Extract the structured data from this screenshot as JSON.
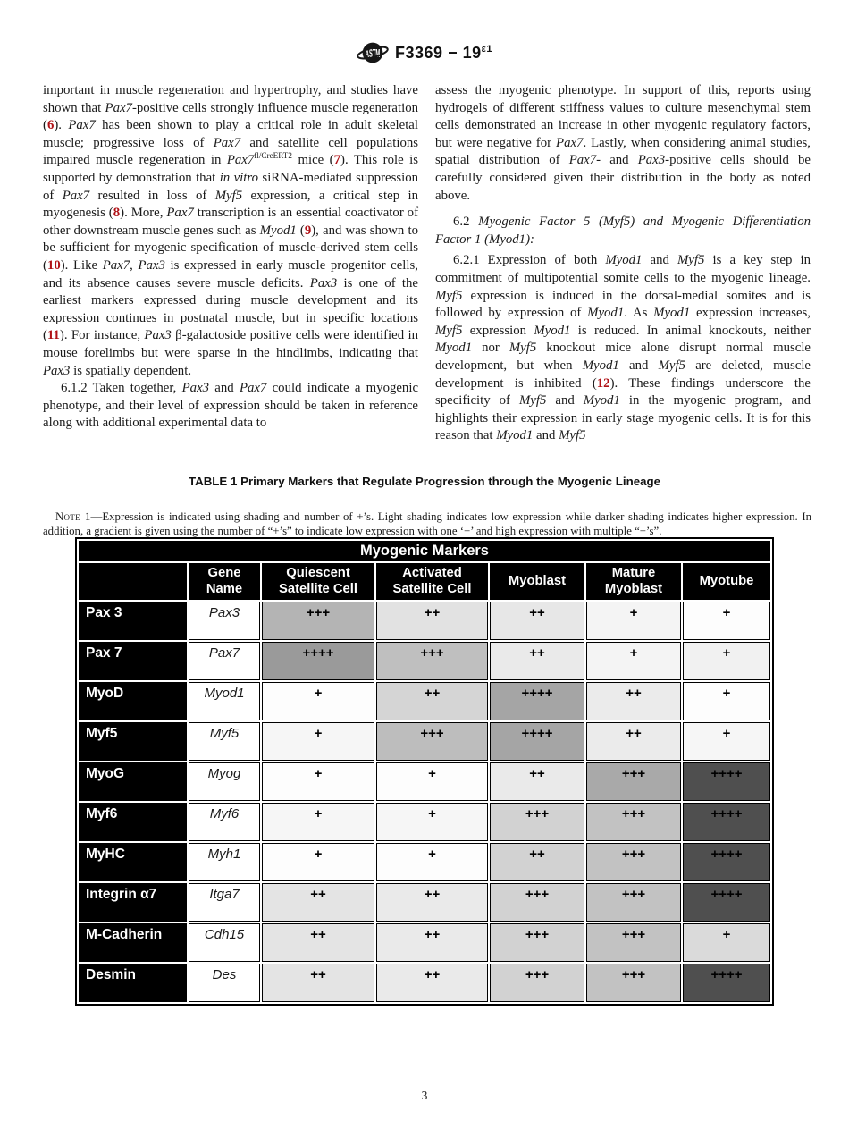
{
  "header": {
    "doc_code": "F3369 − 19",
    "doc_sup": "ε1",
    "logo": "astm-logo"
  },
  "footer": {
    "page_number": "3"
  },
  "colors": {
    "reference_red": "#b01116",
    "table_header_bg": "#000000",
    "dark_expression_cell": "#4f4f4f"
  },
  "article": {
    "left": [
      {
        "indent": false,
        "heading": false,
        "segments": [
          {
            "t": "important in muscle regeneration and hypertrophy, and studies have shown that "
          },
          {
            "t": "Pax7",
            "i": 1
          },
          {
            "t": "-positive cells strongly influence muscle regeneration ("
          },
          {
            "t": "6",
            "ref": 1
          },
          {
            "t": "). "
          },
          {
            "t": "Pax7",
            "i": 1
          },
          {
            "t": " has been shown to play a critical role in adult skeletal muscle; progressive loss of "
          },
          {
            "t": "Pax7",
            "i": 1
          },
          {
            "t": " and satellite cell populations impaired muscle regeneration in "
          },
          {
            "t": "Pax7",
            "i": 1
          },
          {
            "t": "fl/CreERT2",
            "sup": 1
          },
          {
            "t": " mice ("
          },
          {
            "t": "7",
            "ref": 1
          },
          {
            "t": "). This role is supported by demonstration that "
          },
          {
            "t": "in vitro",
            "i": 1
          },
          {
            "t": " siRNA-mediated suppression of "
          },
          {
            "t": "Pax7",
            "i": 1
          },
          {
            "t": " resulted in loss of "
          },
          {
            "t": "Myf5",
            "i": 1
          },
          {
            "t": " expression, a critical step in myogenesis ("
          },
          {
            "t": "8",
            "ref": 1
          },
          {
            "t": "). More, "
          },
          {
            "t": "Pax7",
            "i": 1
          },
          {
            "t": " transcription is an essential coactivator of other downstream muscle genes such as "
          },
          {
            "t": "Myod1",
            "i": 1
          },
          {
            "t": " ("
          },
          {
            "t": "9",
            "ref": 1
          },
          {
            "t": "), and was shown to be sufficient for myogenic specification of muscle-derived stem cells ("
          },
          {
            "t": "10",
            "ref": 1
          },
          {
            "t": "). Like "
          },
          {
            "t": "Pax7",
            "i": 1
          },
          {
            "t": ", "
          },
          {
            "t": "Pax3",
            "i": 1
          },
          {
            "t": " is expressed in early muscle progenitor cells, and its absence causes severe muscle deficits. "
          },
          {
            "t": "Pax3",
            "i": 1
          },
          {
            "t": " is one of the earliest markers expressed during muscle development and its expression continues in postnatal muscle, but in specific locations ("
          },
          {
            "t": "11",
            "ref": 1
          },
          {
            "t": "). For instance, "
          },
          {
            "t": "Pax3",
            "i": 1
          },
          {
            "t": " β-galactoside positive cells were identified in mouse forelimbs but were sparse in the hindlimbs, indicating that "
          },
          {
            "t": "Pax3",
            "i": 1
          },
          {
            "t": " is spatially dependent."
          }
        ]
      },
      {
        "indent": true,
        "heading": false,
        "segments": [
          {
            "t": "6.1.2 Taken together, "
          },
          {
            "t": "Pax3",
            "i": 1
          },
          {
            "t": " and "
          },
          {
            "t": "Pax7",
            "i": 1
          },
          {
            "t": " could indicate a myogenic phenotype, and their level of expression should be taken in reference along with additional experimental data to"
          }
        ]
      }
    ],
    "right": [
      {
        "indent": false,
        "heading": false,
        "segments": [
          {
            "t": "assess the myogenic phenotype. In support of this, reports using hydrogels of different stiffness values to culture mesenchymal stem cells demonstrated an increase in other myogenic regulatory factors, but were negative for "
          },
          {
            "t": "Pax7",
            "i": 1
          },
          {
            "t": ". Lastly, when considering animal studies, spatial distribution of "
          },
          {
            "t": "Pax7",
            "i": 1
          },
          {
            "t": "- and "
          },
          {
            "t": "Pax3",
            "i": 1
          },
          {
            "t": "-positive cells should be carefully considered given their distribution in the body as noted above."
          }
        ]
      },
      {
        "indent": true,
        "heading": true,
        "segments": [
          {
            "t": "6.2 "
          },
          {
            "t": "Myogenic Factor 5 (Myf5) and Myogenic Differentiation Factor 1 (Myod1):",
            "i": 1
          }
        ]
      },
      {
        "indent": true,
        "heading": false,
        "segments": [
          {
            "t": "6.2.1 Expression of both "
          },
          {
            "t": "Myod1",
            "i": 1
          },
          {
            "t": " and "
          },
          {
            "t": "Myf5",
            "i": 1
          },
          {
            "t": " is a key step in commitment of multipotential somite cells to the myogenic lineage. "
          },
          {
            "t": "Myf5",
            "i": 1
          },
          {
            "t": " expression is induced in the dorsal-medial somites and is followed by expression of "
          },
          {
            "t": "Myod1",
            "i": 1
          },
          {
            "t": ". As "
          },
          {
            "t": "Myod1",
            "i": 1
          },
          {
            "t": " expression increases, "
          },
          {
            "t": "Myf5",
            "i": 1
          },
          {
            "t": " expression "
          },
          {
            "t": "Myod1",
            "i": 1
          },
          {
            "t": " is reduced. In animal knockouts, neither "
          },
          {
            "t": "Myod1",
            "i": 1
          },
          {
            "t": " nor "
          },
          {
            "t": "Myf5",
            "i": 1
          },
          {
            "t": " knockout mice alone disrupt normal muscle development, but when "
          },
          {
            "t": "Myod1",
            "i": 1
          },
          {
            "t": " and "
          },
          {
            "t": "Myf5",
            "i": 1
          },
          {
            "t": " are deleted, muscle development is inhibited ("
          },
          {
            "t": "12",
            "ref": 1
          },
          {
            "t": "). These findings underscore the specificity of "
          },
          {
            "t": "Myf5",
            "i": 1
          },
          {
            "t": " and "
          },
          {
            "t": "Myod1",
            "i": 1
          },
          {
            "t": " in the myogenic program, and highlights their expression in early stage myogenic cells. It is for this reason that "
          },
          {
            "t": "Myod1",
            "i": 1
          },
          {
            "t": " and "
          },
          {
            "t": "Myf5",
            "i": 1
          }
        ]
      }
    ]
  },
  "table": {
    "caption": "TABLE 1 Primary Markers that Regulate Progression through the Myogenic Lineage",
    "note_label": "Note 1",
    "note_text": "—Expression is indicated using shading and number of +’s. Light shading indicates low expression while darker shading indicates higher expression. In addition, a gradient is given using the number of “+’s” to indicate low expression with one ‘+’ and high expression with multiple “+’s”.",
    "title": "Myogenic Markers",
    "columns": [
      "",
      "Gene Name",
      "Quiescent Satellite Cell",
      "Activated Satellite Cell",
      "Myoblast",
      "Mature Myoblast",
      "Myotube"
    ],
    "rows": [
      {
        "marker": "Pax 3",
        "gene": "Pax3",
        "cells": [
          {
            "v": "+++",
            "bg": "#b4b4b4"
          },
          {
            "v": "++",
            "bg": "#e2e2e2"
          },
          {
            "v": "++",
            "bg": "#e7e7e7"
          },
          {
            "v": "+",
            "bg": "#f4f4f4"
          },
          {
            "v": "+",
            "bg": "#fdfdfd"
          }
        ]
      },
      {
        "marker": "Pax 7",
        "gene": "Pax7",
        "cells": [
          {
            "v": "++++",
            "bg": "#9a9a9a"
          },
          {
            "v": "+++",
            "bg": "#bfbfbf"
          },
          {
            "v": "++",
            "bg": "#eaeaea"
          },
          {
            "v": "+",
            "bg": "#f4f4f4"
          },
          {
            "v": "+",
            "bg": "#f1f1f1"
          }
        ]
      },
      {
        "marker": "MyoD",
        "gene": "Myod1",
        "cells": [
          {
            "v": "+",
            "bg": "#fdfdfd"
          },
          {
            "v": "++",
            "bg": "#d5d5d5"
          },
          {
            "v": "++++",
            "bg": "#a5a5a5"
          },
          {
            "v": "++",
            "bg": "#ebebeb"
          },
          {
            "v": "+",
            "bg": "#fdfdfd"
          }
        ]
      },
      {
        "marker": "Myf5",
        "gene": "Myf5",
        "cells": [
          {
            "v": "+",
            "bg": "#f6f6f6"
          },
          {
            "v": "+++",
            "bg": "#bdbdbd"
          },
          {
            "v": "++++",
            "bg": "#a5a5a5"
          },
          {
            "v": "++",
            "bg": "#ebebeb"
          },
          {
            "v": "+",
            "bg": "#f6f6f6"
          }
        ]
      },
      {
        "marker": "MyoG",
        "gene": "Myog",
        "cells": [
          {
            "v": "+",
            "bg": "#fdfdfd"
          },
          {
            "v": "+",
            "bg": "#fdfdfd"
          },
          {
            "v": "++",
            "bg": "#eaeaea"
          },
          {
            "v": "+++",
            "bg": "#a9a9a9"
          },
          {
            "v": "++++",
            "bg": "#4f4f4f"
          }
        ]
      },
      {
        "marker": "Myf6",
        "gene": "Myf6",
        "cells": [
          {
            "v": "+",
            "bg": "#f6f6f6"
          },
          {
            "v": "+",
            "bg": "#f6f6f6"
          },
          {
            "v": "+++",
            "bg": "#d2d2d2"
          },
          {
            "v": "+++",
            "bg": "#c2c2c2"
          },
          {
            "v": "++++",
            "bg": "#4f4f4f"
          }
        ]
      },
      {
        "marker": "MyHC",
        "gene": "Myh1",
        "cells": [
          {
            "v": "+",
            "bg": "#fdfdfd"
          },
          {
            "v": "+",
            "bg": "#fdfdfd"
          },
          {
            "v": "++",
            "bg": "#d2d2d2"
          },
          {
            "v": "+++",
            "bg": "#c2c2c2"
          },
          {
            "v": "++++",
            "bg": "#4f4f4f"
          }
        ]
      },
      {
        "marker": "Integrin α7",
        "gene": "Itga7",
        "cells": [
          {
            "v": "++",
            "bg": "#e4e4e4"
          },
          {
            "v": "++",
            "bg": "#eaeaea"
          },
          {
            "v": "+++",
            "bg": "#d2d2d2"
          },
          {
            "v": "+++",
            "bg": "#c2c2c2"
          },
          {
            "v": "++++",
            "bg": "#4f4f4f"
          }
        ]
      },
      {
        "marker": "M-Cadherin",
        "gene": "Cdh15",
        "cells": [
          {
            "v": "++",
            "bg": "#e4e4e4"
          },
          {
            "v": "++",
            "bg": "#eaeaea"
          },
          {
            "v": "+++",
            "bg": "#d2d2d2"
          },
          {
            "v": "+++",
            "bg": "#c2c2c2"
          },
          {
            "v": "+",
            "bg": "#dadada"
          }
        ]
      },
      {
        "marker": "Desmin",
        "gene": "Des",
        "cells": [
          {
            "v": "++",
            "bg": "#e4e4e4"
          },
          {
            "v": "++",
            "bg": "#eaeaea"
          },
          {
            "v": "+++",
            "bg": "#d2d2d2"
          },
          {
            "v": "+++",
            "bg": "#c2c2c2"
          },
          {
            "v": "++++",
            "bg": "#4f4f4f"
          }
        ]
      }
    ]
  }
}
